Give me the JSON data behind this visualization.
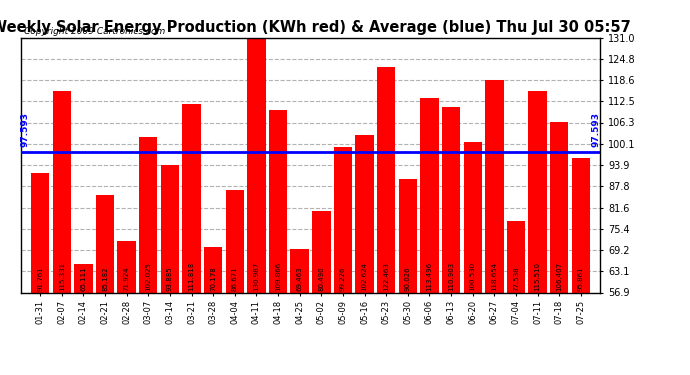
{
  "title": "Weekly Solar Energy Production (KWh red) & Average (blue) Thu Jul 30 05:57",
  "copyright": "Copyright 2009 Cartronics.com",
  "average": 97.593,
  "categories": [
    "01-31",
    "02-07",
    "02-14",
    "02-21",
    "02-28",
    "03-07",
    "03-14",
    "03-21",
    "03-28",
    "04-04",
    "04-11",
    "04-18",
    "04-25",
    "05-02",
    "05-09",
    "05-16",
    "05-23",
    "05-30",
    "06-06",
    "06-13",
    "06-20",
    "06-27",
    "07-04",
    "07-11",
    "07-18",
    "07-25"
  ],
  "values": [
    91.761,
    115.331,
    65.111,
    85.182,
    71.924,
    102.025,
    93.885,
    111.818,
    70.178,
    86.671,
    130.987,
    109.866,
    69.463,
    80.49,
    99.226,
    102.624,
    122.463,
    90.026,
    113.496,
    110.903,
    100.53,
    118.654,
    77.538,
    115.51,
    106.407,
    95.861
  ],
  "bar_color": "#ff0000",
  "avg_line_color": "#0000ff",
  "background_color": "#ffffff",
  "plot_bg_color": "#ffffff",
  "grid_color": "#aaaaaa",
  "ylim_min": 56.9,
  "ylim_max": 131.0,
  "yticks": [
    56.9,
    63.1,
    69.2,
    75.4,
    81.6,
    87.8,
    93.9,
    100.1,
    106.3,
    112.5,
    118.6,
    124.8,
    131.0
  ],
  "avg_label": "97.593",
  "bar_label_fontsize": 5.0,
  "title_fontsize": 10.5,
  "copyright_fontsize": 6.5
}
